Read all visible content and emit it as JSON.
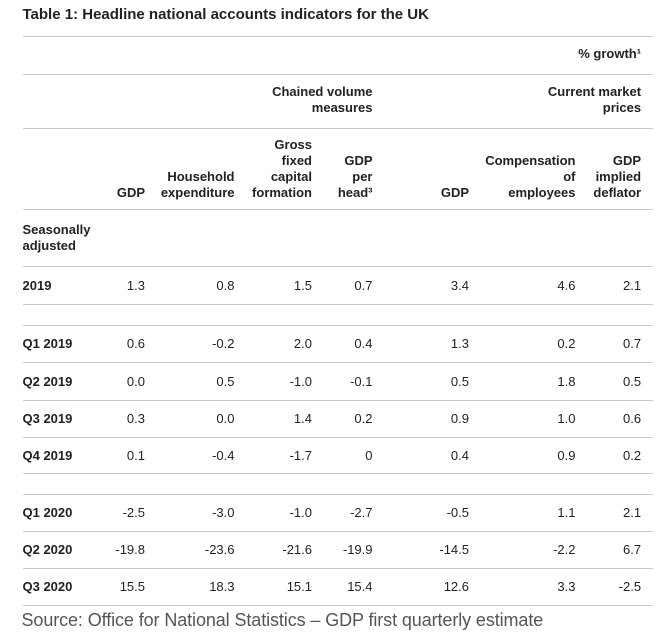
{
  "page": {
    "title": "Table 1: Headline national accounts indicators for the UK",
    "source": "Source: Office for National Statistics – GDP first quarterly estimate"
  },
  "table": {
    "unit_note": "% growth¹",
    "group_headers": [
      {
        "label": "Chained volume measures"
      },
      {
        "label": "Current market prices"
      }
    ],
    "columns": [
      {
        "label": "GDP"
      },
      {
        "label": "Household expenditure"
      },
      {
        "label": "Gross fixed capital formation"
      },
      {
        "label": "GDP per head³"
      },
      {
        "label": "GDP"
      },
      {
        "label": "Compensation of employees"
      },
      {
        "label": "GDP implied deflator"
      }
    ],
    "section_label": "Seasonally adjusted",
    "rows": [
      {
        "label": "2019",
        "values": [
          "1.3",
          "0.8",
          "1.5",
          "0.7",
          "3.4",
          "4.6",
          "2.1"
        ]
      },
      {
        "label": "Q1 2019",
        "values": [
          "0.6",
          "-0.2",
          "2.0",
          "0.4",
          "1.3",
          "0.2",
          "0.7"
        ]
      },
      {
        "label": "Q2 2019",
        "values": [
          "0.0",
          "0.5",
          "-1.0",
          "-0.1",
          "0.5",
          "1.8",
          "0.5"
        ]
      },
      {
        "label": "Q3 2019",
        "values": [
          "0.3",
          "0.0",
          "1.4",
          "0.2",
          "0.9",
          "1.0",
          "0.6"
        ]
      },
      {
        "label": "Q4 2019",
        "values": [
          "0.1",
          "-0.4",
          "-1.7",
          "0",
          "0.4",
          "0.9",
          "0.2"
        ]
      },
      {
        "label": "Q1 2020",
        "values": [
          "-2.5",
          "-3.0",
          "-1.0",
          "-2.7",
          "-0.5",
          "1.1",
          "2.1"
        ]
      },
      {
        "label": "Q2 2020",
        "values": [
          "-19.8",
          "-23.6",
          "-21.6",
          "-19.9",
          "-14.5",
          "-2.2",
          "6.7"
        ]
      },
      {
        "label": "Q3 2020",
        "values": [
          "15.5",
          "18.3",
          "15.1",
          "15.4",
          "12.6",
          "3.3",
          "-2.5"
        ]
      }
    ]
  },
  "colors": {
    "text": "#222222",
    "source_text": "#555555",
    "rule": "#c5c9cd",
    "background": "#ffffff"
  },
  "chart_data": {
    "type": "table",
    "title": "Table 1: Headline national accounts indicators for the UK",
    "unit": "% growth",
    "column_groups": [
      {
        "label": "Chained volume measures",
        "columns": [
          "GDP",
          "Household expenditure",
          "Gross fixed capital formation",
          "GDP per head"
        ]
      },
      {
        "label": "Current market prices",
        "columns": [
          "GDP",
          "Compensation of employees",
          "GDP implied deflator"
        ]
      }
    ],
    "categories": [
      "2019",
      "Q1 2019",
      "Q2 2019",
      "Q3 2019",
      "Q4 2019",
      "Q1 2020",
      "Q2 2020",
      "Q3 2020"
    ],
    "series": [
      {
        "name": "GDP (chained volume measures)",
        "values": [
          1.3,
          0.6,
          0.0,
          0.3,
          0.1,
          -2.5,
          -19.8,
          15.5
        ]
      },
      {
        "name": "Household expenditure",
        "values": [
          0.8,
          -0.2,
          0.5,
          0.0,
          -0.4,
          -3.0,
          -23.6,
          18.3
        ]
      },
      {
        "name": "Gross fixed capital formation",
        "values": [
          1.5,
          2.0,
          -1.0,
          1.4,
          -1.7,
          -1.0,
          -21.6,
          15.1
        ]
      },
      {
        "name": "GDP per head",
        "values": [
          0.7,
          0.4,
          -0.1,
          0.2,
          0,
          -2.7,
          -19.9,
          15.4
        ]
      },
      {
        "name": "GDP (current market prices)",
        "values": [
          3.4,
          1.3,
          0.5,
          0.9,
          0.4,
          -0.5,
          -14.5,
          12.6
        ]
      },
      {
        "name": "Compensation of employees",
        "values": [
          4.6,
          0.2,
          1.8,
          1.0,
          0.9,
          1.1,
          -2.2,
          3.3
        ]
      },
      {
        "name": "GDP implied deflator",
        "values": [
          2.1,
          0.7,
          0.5,
          0.6,
          0.2,
          2.1,
          6.7,
          -2.5
        ]
      }
    ]
  }
}
